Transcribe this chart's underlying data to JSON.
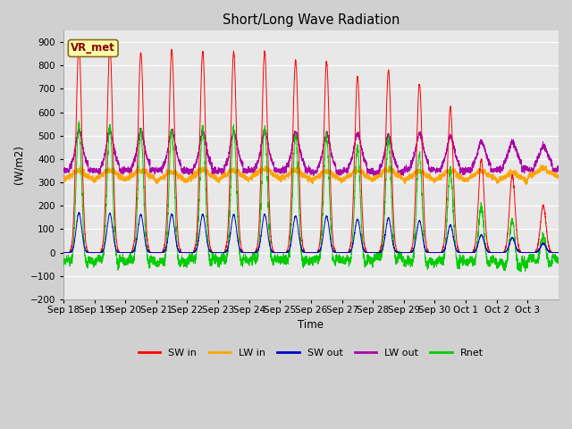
{
  "title": "Short/Long Wave Radiation",
  "xlabel": "Time",
  "ylabel": "(W/m2)",
  "ylim": [
    -200,
    950
  ],
  "yticks": [
    -200,
    -100,
    0,
    100,
    200,
    300,
    400,
    500,
    600,
    700,
    800,
    900
  ],
  "station_label": "VR_met",
  "x_tick_labels": [
    "Sep 18",
    "Sep 19",
    "Sep 20",
    "Sep 21",
    "Sep 22",
    "Sep 23",
    "Sep 24",
    "Sep 25",
    "Sep 26",
    "Sep 27",
    "Sep 28",
    "Sep 29",
    "Sep 30",
    "Oct 1",
    "Oct 2",
    "Oct 3"
  ],
  "colors": {
    "SW_in": "#ff0000",
    "LW_in": "#ffa500",
    "SW_out": "#0000cc",
    "LW_out": "#aa00aa",
    "Rnet": "#00cc00"
  },
  "legend_labels": [
    "SW in",
    "LW in",
    "SW out",
    "LW out",
    "Rnet"
  ],
  "fig_facecolor": "#d0d0d0",
  "ax_facecolor": "#e8e8e8",
  "grid_color": "#ffffff",
  "n_days": 16,
  "pts_per_day": 288,
  "sw_peaks": [
    890,
    880,
    855,
    865,
    860,
    855,
    860,
    820,
    815,
    750,
    780,
    720,
    620,
    400,
    330,
    200
  ],
  "sw_peak_narrow": 0.09,
  "sw_cutoff_low": 0.2,
  "sw_cutoff_high": 0.8,
  "lw_in_base": 310,
  "lw_in_range": 30,
  "lw_out_base": 350,
  "lw_out_peak_boost": 230,
  "rnet_night": -65
}
